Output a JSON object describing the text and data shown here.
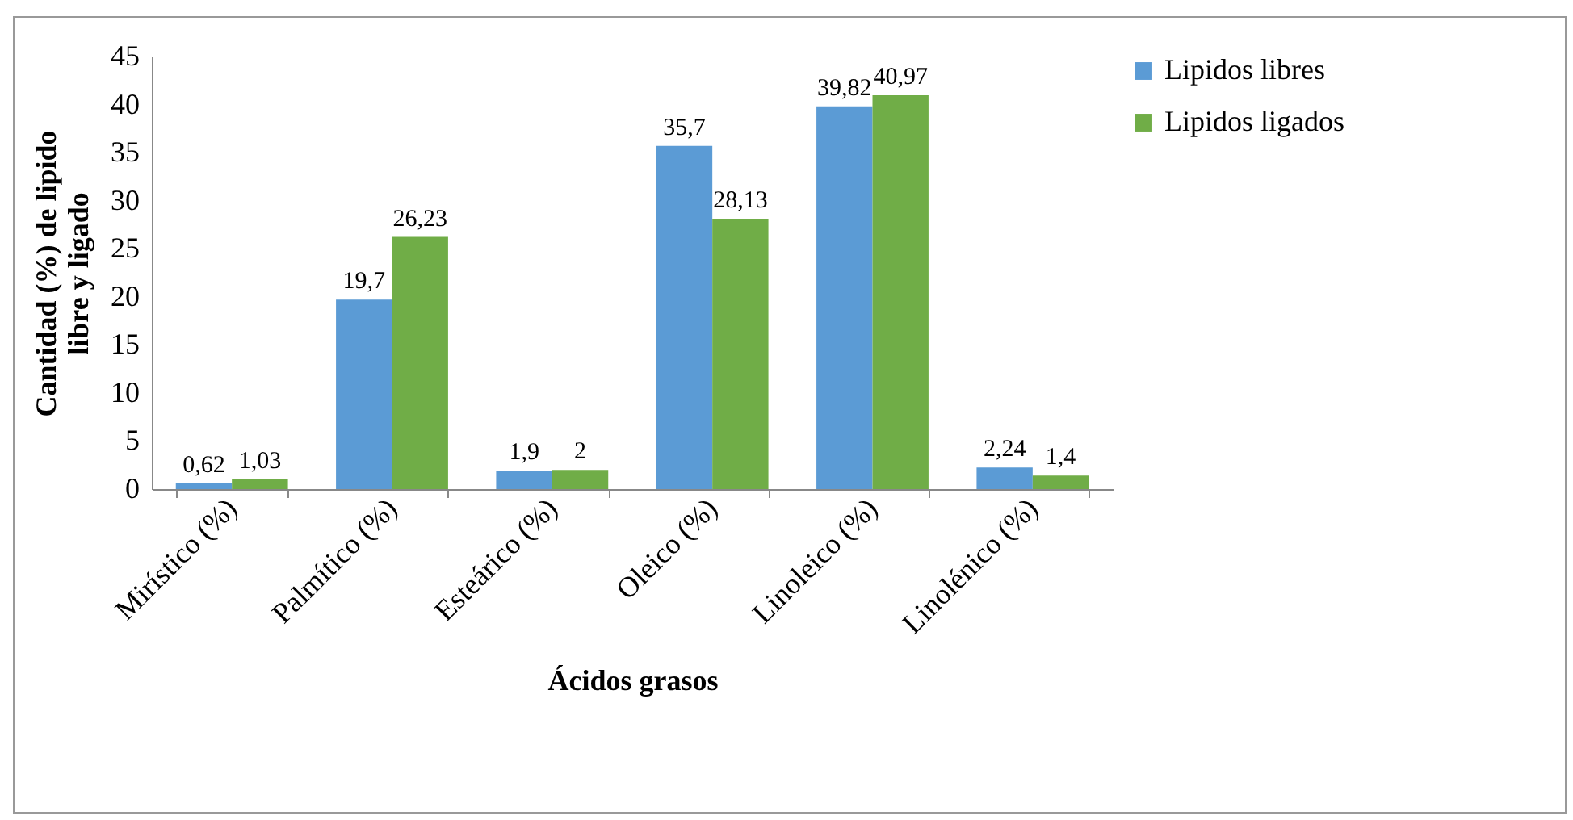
{
  "chart_data": {
    "type": "bar",
    "xlabel": "Ácidos grasos",
    "ylabel": "Cantidad (%) de lipido libre y ligado",
    "categories": [
      "Mirístico (%)",
      "Palmítico (%)",
      "Esteárico (%)",
      "Oleico (%)",
      "Linoleico (%)",
      "Linolénico  (%)"
    ],
    "series": [
      {
        "name": "Lipidos libres",
        "color": "#5b9bd5",
        "values": [
          0.62,
          19.7,
          1.9,
          35.7,
          39.82,
          2.24
        ],
        "value_labels": [
          "0,62",
          "19,7",
          "1,9",
          "35,7",
          "39,82",
          "2,24"
        ]
      },
      {
        "name": "Lipidos ligados",
        "color": "#70ad47",
        "values": [
          1.03,
          26.23,
          2,
          28.13,
          40.97,
          1.4
        ],
        "value_labels": [
          "1,03",
          "26,23",
          "2",
          "28,13",
          "40,97",
          "1,4"
        ]
      }
    ],
    "ylim": [
      0,
      45
    ],
    "yticks": [
      0,
      5,
      10,
      15,
      20,
      25,
      30,
      35,
      40,
      45
    ],
    "grid": false,
    "legend": "right"
  }
}
